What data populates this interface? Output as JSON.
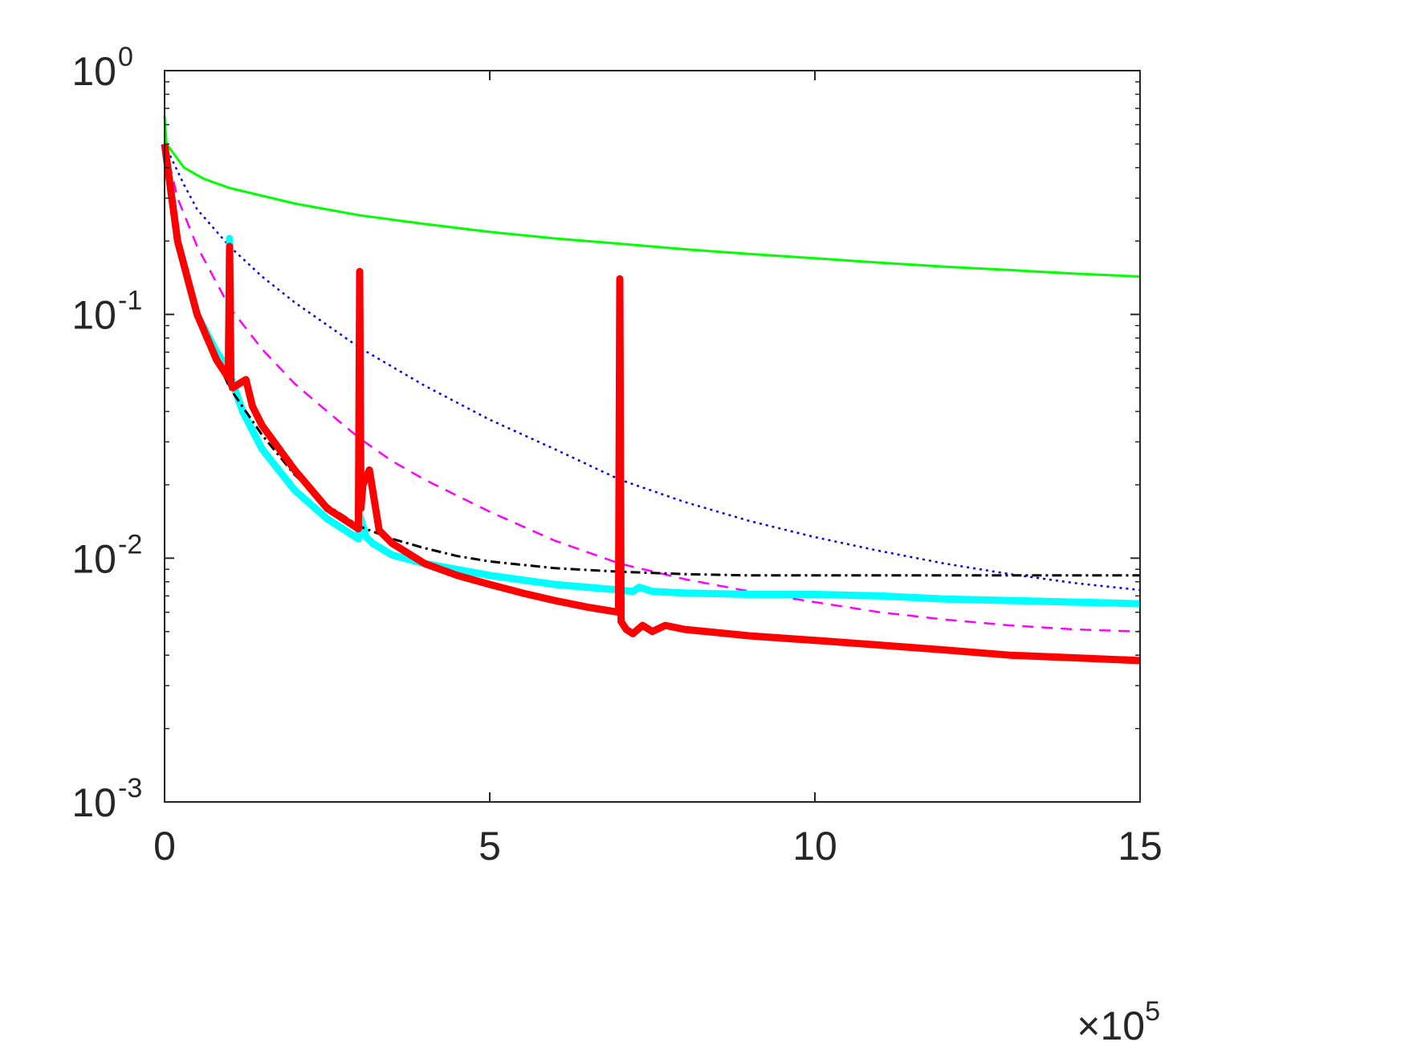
{
  "chart_data": {
    "type": "line",
    "title": "",
    "xlabel": "",
    "ylabel": "",
    "x_multiplier_label": {
      "base": "10",
      "exponent": "5"
    },
    "xlim": [
      0,
      15
    ],
    "ylim": [
      0.001,
      1
    ],
    "yscale": "log",
    "grid": false,
    "x_ticks": [
      {
        "value": 0,
        "label": "0"
      },
      {
        "value": 5,
        "label": "5"
      },
      {
        "value": 10,
        "label": "10"
      },
      {
        "value": 15,
        "label": "15"
      }
    ],
    "y_ticks": [
      {
        "value": 0.001,
        "base": "10",
        "exponent": "-3"
      },
      {
        "value": 0.01,
        "base": "10",
        "exponent": "-2"
      },
      {
        "value": 0.1,
        "base": "10",
        "exponent": "-1"
      },
      {
        "value": 1,
        "base": "10",
        "exponent": "0"
      }
    ],
    "series": [
      {
        "color": "#00ff00",
        "width": 3,
        "dash": "",
        "x": [
          0,
          0.03,
          0.3,
          0.6,
          1,
          2,
          3,
          4,
          5,
          6,
          7,
          8,
          9,
          10,
          11,
          12,
          13,
          14,
          15
        ],
        "y": [
          0.65,
          0.5,
          0.4,
          0.36,
          0.33,
          0.285,
          0.255,
          0.235,
          0.218,
          0.205,
          0.195,
          0.185,
          0.177,
          0.17,
          0.163,
          0.157,
          0.152,
          0.147,
          0.143
        ]
      },
      {
        "color": "#0000ee",
        "width": 2.5,
        "dash": "3,5",
        "x": [
          0,
          0.3,
          0.5,
          1,
          1.5,
          2,
          3,
          4,
          5,
          6,
          7,
          8,
          9,
          10,
          11,
          12,
          13,
          14,
          15
        ],
        "y": [
          0.5,
          0.34,
          0.27,
          0.19,
          0.143,
          0.112,
          0.073,
          0.051,
          0.037,
          0.028,
          0.021,
          0.017,
          0.0142,
          0.0122,
          0.0107,
          0.0095,
          0.0086,
          0.0079,
          0.0074
        ]
      },
      {
        "color": "#ff00ff",
        "width": 2.5,
        "dash": "14,10",
        "x": [
          0,
          0.2,
          0.5,
          1,
          1.5,
          2,
          2.5,
          3,
          3.5,
          4,
          5,
          6,
          7,
          8,
          9,
          10,
          11,
          12,
          13,
          14,
          15
        ],
        "y": [
          0.5,
          0.3,
          0.19,
          0.107,
          0.072,
          0.052,
          0.04,
          0.031,
          0.025,
          0.021,
          0.0155,
          0.0118,
          0.0095,
          0.0082,
          0.0073,
          0.0066,
          0.006,
          0.0056,
          0.0053,
          0.0051,
          0.005
        ]
      },
      {
        "color": "#00ffff",
        "width": 9,
        "dash": "",
        "x": [
          0,
          0.2,
          0.5,
          0.8,
          0.98,
          1.0,
          1.02,
          1.2,
          1.5,
          2,
          2.5,
          2.98,
          3.0,
          3.1,
          3.2,
          3.5,
          4,
          5,
          6,
          7,
          7.2,
          7.3,
          7.5,
          8,
          9,
          10,
          11,
          12,
          13,
          14,
          15
        ],
        "y": [
          0.5,
          0.2,
          0.1,
          0.07,
          0.06,
          0.205,
          0.055,
          0.04,
          0.028,
          0.019,
          0.0145,
          0.012,
          0.015,
          0.0122,
          0.0115,
          0.0103,
          0.0095,
          0.0085,
          0.0078,
          0.0074,
          0.0073,
          0.0076,
          0.0073,
          0.0072,
          0.0071,
          0.0071,
          0.007,
          0.0068,
          0.0067,
          0.0066,
          0.0065
        ]
      },
      {
        "color": "#000000",
        "width": 3,
        "dash": "12,5,3,5",
        "x": [
          0,
          0.2,
          0.5,
          1,
          1.5,
          2,
          2.5,
          3,
          3.5,
          4,
          4.5,
          5,
          6,
          7,
          8,
          9,
          10,
          11,
          12,
          13,
          14,
          15
        ],
        "y": [
          0.5,
          0.2,
          0.1,
          0.05,
          0.032,
          0.022,
          0.0165,
          0.0135,
          0.012,
          0.011,
          0.0102,
          0.0097,
          0.0091,
          0.0088,
          0.0086,
          0.0085,
          0.0085,
          0.0085,
          0.0085,
          0.0085,
          0.0085,
          0.0085
        ]
      },
      {
        "color": "#ff0000",
        "width": 9,
        "dash": "",
        "x": [
          0,
          0.2,
          0.5,
          0.8,
          0.98,
          1.0,
          1.02,
          1.05,
          1.15,
          1.25,
          1.35,
          1.5,
          2,
          2.5,
          2.98,
          3.0,
          3.02,
          3.05,
          3.15,
          3.3,
          3.5,
          4,
          4.5,
          5,
          5.5,
          6,
          6.5,
          6.98,
          7.0,
          7.02,
          7.1,
          7.2,
          7.35,
          7.5,
          7.7,
          8,
          9,
          10,
          11,
          12,
          13,
          14,
          15
        ],
        "y": [
          0.5,
          0.2,
          0.1,
          0.065,
          0.055,
          0.19,
          0.052,
          0.05,
          0.052,
          0.054,
          0.042,
          0.035,
          0.023,
          0.016,
          0.0132,
          0.15,
          0.016,
          0.02,
          0.023,
          0.013,
          0.0115,
          0.0095,
          0.0085,
          0.0078,
          0.0072,
          0.0067,
          0.0063,
          0.006,
          0.14,
          0.0055,
          0.0051,
          0.0049,
          0.0053,
          0.005,
          0.0053,
          0.0051,
          0.0048,
          0.0046,
          0.0044,
          0.0042,
          0.004,
          0.0039,
          0.0038
        ]
      }
    ]
  }
}
